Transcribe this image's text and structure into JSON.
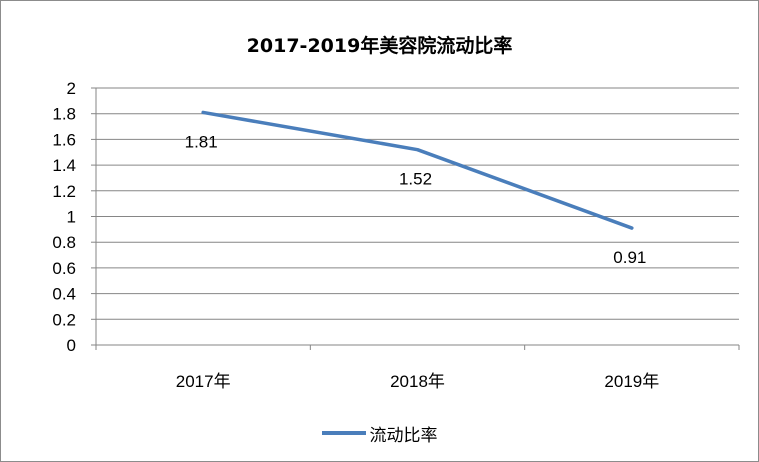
{
  "chart_data": {
    "type": "line",
    "title": "2017-2019年美容院流动比率",
    "categories": [
      "2017年",
      "2018年",
      "2019年"
    ],
    "series": [
      {
        "name": "流动比率",
        "values": [
          1.81,
          1.52,
          0.91
        ],
        "labels": [
          "1.81",
          "1.52",
          "0.91"
        ]
      }
    ],
    "ylim": [
      0,
      2
    ],
    "yticks": [
      "0",
      "0.2",
      "0.4",
      "0.6",
      "0.8",
      "1",
      "1.2",
      "1.4",
      "1.6",
      "1.8",
      "2"
    ],
    "grid": true,
    "legend_position": "bottom",
    "colors": {
      "series": "#4a7ebb",
      "grid": "#868686",
      "axis": "#868686"
    }
  }
}
